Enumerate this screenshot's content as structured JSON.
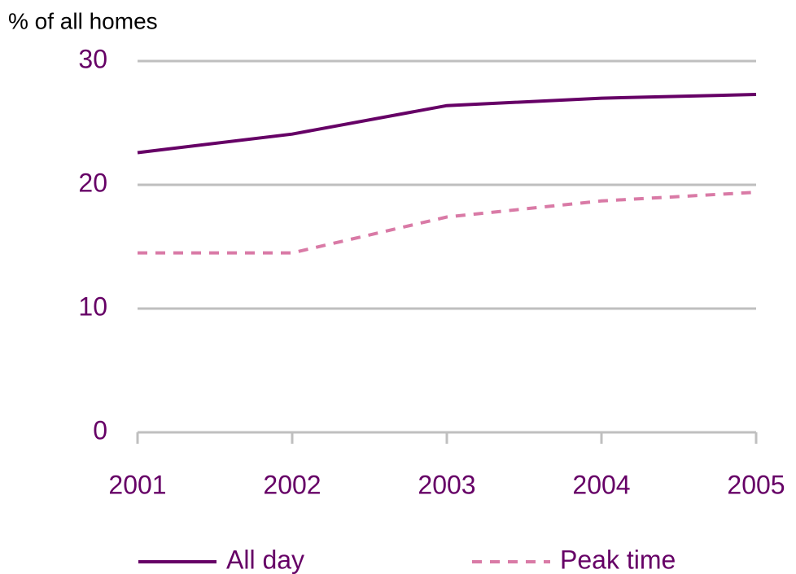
{
  "chart_data": {
    "type": "line",
    "y_axis_label": "% of all homes",
    "categories": [
      "2001",
      "2002",
      "2003",
      "2004",
      "2005"
    ],
    "series": [
      {
        "name": "All day",
        "color": "#660066",
        "dash": "solid",
        "values": [
          22.6,
          24.1,
          26.4,
          27.0,
          27.3
        ]
      },
      {
        "name": "Peak time",
        "color": "#d97aa6",
        "dash": "dashed",
        "values": [
          14.5,
          14.5,
          17.4,
          18.7,
          19.4
        ]
      }
    ],
    "ylim": [
      0,
      30
    ],
    "yticks": [
      0,
      10,
      20,
      30
    ],
    "grid": true,
    "legend": "bottom"
  }
}
